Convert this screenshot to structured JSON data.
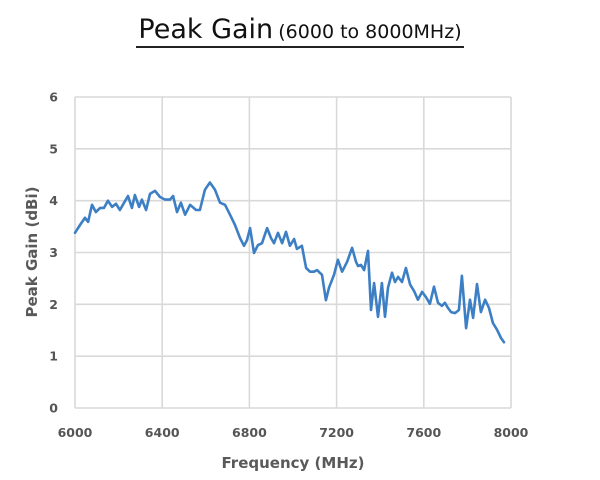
{
  "title": {
    "main": "Peak Gain",
    "sub": "(6000 to 8000MHz)"
  },
  "colors": {
    "line": "#3d7fc4",
    "grid": "#d9d9d9",
    "tick_text": "#555555",
    "axis_label": "#595959"
  },
  "chart_data": {
    "type": "line",
    "title": "Peak Gain (6000 to 8000MHz)",
    "xlabel": "Frequency (MHz)",
    "ylabel": "Peak Gain (dBi)",
    "xlim": [
      6000,
      8000
    ],
    "ylim": [
      0,
      6
    ],
    "xticks": [
      6000,
      6400,
      6800,
      7200,
      7600,
      8000
    ],
    "yticks": [
      0,
      1,
      2,
      3,
      4,
      5,
      6
    ],
    "grid": true,
    "legend": null,
    "series": [
      {
        "name": "Peak Gain",
        "x": [
          6000,
          6023,
          6046,
          6060,
          6078,
          6096,
          6115,
          6133,
          6151,
          6170,
          6188,
          6206,
          6225,
          6243,
          6261,
          6275,
          6294,
          6307,
          6326,
          6344,
          6367,
          6390,
          6413,
          6436,
          6450,
          6468,
          6486,
          6505,
          6528,
          6555,
          6573,
          6596,
          6619,
          6642,
          6665,
          6688,
          6711,
          6734,
          6757,
          6775,
          6789,
          6803,
          6821,
          6839,
          6858,
          6881,
          6899,
          6913,
          6931,
          6950,
          6968,
          6986,
          7005,
          7018,
          7041,
          7060,
          7078,
          7096,
          7110,
          7133,
          7151,
          7165,
          7188,
          7206,
          7225,
          7248,
          7271,
          7289,
          7298,
          7312,
          7326,
          7344,
          7358,
          7372,
          7390,
          7408,
          7422,
          7436,
          7454,
          7468,
          7482,
          7500,
          7518,
          7537,
          7555,
          7573,
          7592,
          7610,
          7628,
          7647,
          7665,
          7683,
          7697,
          7711,
          7725,
          7743,
          7761,
          7775,
          7794,
          7812,
          7826,
          7844,
          7862,
          7881,
          7899,
          7917,
          7936,
          7954,
          7968
        ],
        "y": [
          3.38,
          3.53,
          3.67,
          3.59,
          3.92,
          3.78,
          3.86,
          3.86,
          4.0,
          3.88,
          3.94,
          3.82,
          3.96,
          4.09,
          3.86,
          4.11,
          3.88,
          4.02,
          3.82,
          4.13,
          4.19,
          4.07,
          4.02,
          4.02,
          4.09,
          3.78,
          3.96,
          3.73,
          3.92,
          3.82,
          3.82,
          4.21,
          4.35,
          4.21,
          3.96,
          3.92,
          3.73,
          3.53,
          3.28,
          3.13,
          3.24,
          3.47,
          2.99,
          3.14,
          3.18,
          3.47,
          3.28,
          3.18,
          3.38,
          3.18,
          3.4,
          3.13,
          3.26,
          3.07,
          3.13,
          2.7,
          2.63,
          2.63,
          2.66,
          2.57,
          2.08,
          2.32,
          2.57,
          2.86,
          2.63,
          2.82,
          3.09,
          2.82,
          2.74,
          2.76,
          2.66,
          3.03,
          1.89,
          2.41,
          1.76,
          2.41,
          1.76,
          2.32,
          2.61,
          2.43,
          2.53,
          2.43,
          2.7,
          2.38,
          2.26,
          2.09,
          2.24,
          2.14,
          2.01,
          2.34,
          2.03,
          1.97,
          2.03,
          1.93,
          1.85,
          1.83,
          1.89,
          2.55,
          1.54,
          2.09,
          1.74,
          2.39,
          1.85,
          2.09,
          1.93,
          1.64,
          1.51,
          1.35,
          1.27
        ]
      }
    ]
  }
}
